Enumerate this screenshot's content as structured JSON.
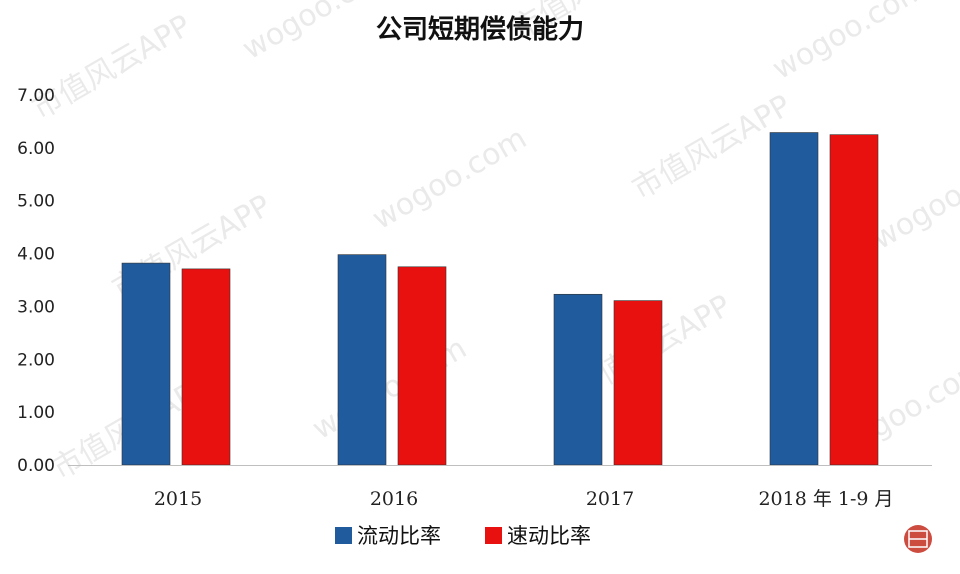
{
  "chart_data": {
    "type": "bar",
    "title": "公司短期偿债能力",
    "categories": [
      "2015",
      "2016",
      "2017",
      "2018 年 1-9 月"
    ],
    "series": [
      {
        "name": "流动比率",
        "color": "#1f5b9d",
        "values": [
          3.82,
          3.98,
          3.23,
          6.29
        ]
      },
      {
        "name": "速动比率",
        "color": "#e8110f",
        "values": [
          3.71,
          3.75,
          3.11,
          6.25
        ]
      }
    ],
    "y_ticks": [
      "0.00",
      "1.00",
      "2.00",
      "3.00",
      "4.00",
      "5.00",
      "6.00",
      "7.00"
    ],
    "ylim": [
      0,
      7
    ],
    "grid": false,
    "legend_position": "bottom-center"
  },
  "watermark": {
    "texts": [
      "市值风云APP",
      "wogoo.com"
    ]
  }
}
